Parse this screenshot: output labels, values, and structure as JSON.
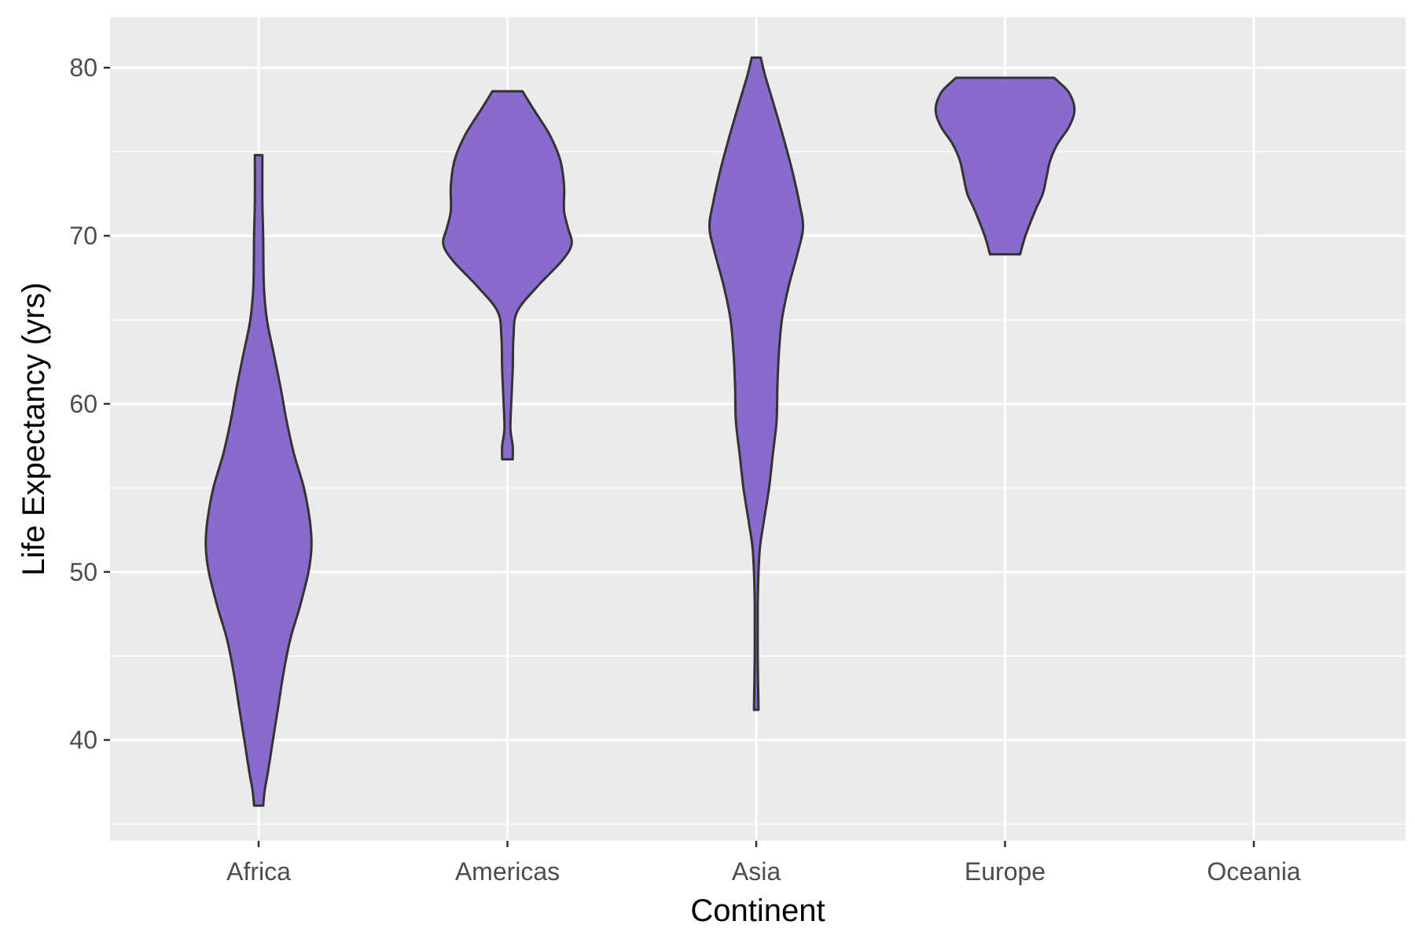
{
  "chart_data": {
    "type": "violin",
    "title": "",
    "xlabel": "Continent",
    "ylabel": "Life Expectancy (yrs)",
    "ylim": [
      34,
      83
    ],
    "yticks": [
      40,
      50,
      60,
      70,
      80
    ],
    "categories": [
      "Africa",
      "Americas",
      "Asia",
      "Europe",
      "Oceania"
    ],
    "grid": true,
    "legend": "none",
    "colors": {
      "panel_background": "#ebebeb",
      "grid_line": "#ffffff",
      "violin_fill": "#8a6acd",
      "violin_stroke": "#333333",
      "tick_label": "#4d4d4d",
      "tick_mark": "#333333"
    },
    "violins": [
      {
        "category": "Africa",
        "min": 36.1,
        "max": 74.8,
        "profile": [
          [
            36.1,
            0.06
          ],
          [
            37,
            0.08
          ],
          [
            38,
            0.12
          ],
          [
            40,
            0.19
          ],
          [
            42,
            0.26
          ],
          [
            44,
            0.33
          ],
          [
            46,
            0.42
          ],
          [
            48,
            0.55
          ],
          [
            50,
            0.66
          ],
          [
            51.5,
            0.7
          ],
          [
            53,
            0.68
          ],
          [
            55,
            0.6
          ],
          [
            57,
            0.47
          ],
          [
            59,
            0.37
          ],
          [
            61,
            0.29
          ],
          [
            63,
            0.2
          ],
          [
            65,
            0.11
          ],
          [
            67,
            0.07
          ],
          [
            70,
            0.06
          ],
          [
            72,
            0.05
          ],
          [
            74.8,
            0.05
          ]
        ]
      },
      {
        "category": "Americas",
        "min": 56.7,
        "max": 78.6,
        "profile": [
          [
            56.7,
            0.07
          ],
          [
            57.5,
            0.07
          ],
          [
            58.5,
            0.04
          ],
          [
            60,
            0.05
          ],
          [
            62,
            0.07
          ],
          [
            64,
            0.08
          ],
          [
            65.5,
            0.13
          ],
          [
            67,
            0.4
          ],
          [
            68.5,
            0.72
          ],
          [
            69.5,
            0.85
          ],
          [
            70.5,
            0.8
          ],
          [
            71.5,
            0.75
          ],
          [
            73,
            0.75
          ],
          [
            74.5,
            0.7
          ],
          [
            76,
            0.56
          ],
          [
            77.5,
            0.35
          ],
          [
            78.6,
            0.2
          ]
        ]
      },
      {
        "category": "Asia",
        "min": 41.8,
        "max": 80.6,
        "profile": [
          [
            41.8,
            0.03
          ],
          [
            45,
            0.02
          ],
          [
            48,
            0.02
          ],
          [
            50,
            0.03
          ],
          [
            51.5,
            0.05
          ],
          [
            53,
            0.1
          ],
          [
            55,
            0.17
          ],
          [
            57,
            0.22
          ],
          [
            59,
            0.27
          ],
          [
            61,
            0.28
          ],
          [
            63,
            0.3
          ],
          [
            65,
            0.34
          ],
          [
            67,
            0.43
          ],
          [
            69,
            0.55
          ],
          [
            70.5,
            0.62
          ],
          [
            72,
            0.57
          ],
          [
            74,
            0.47
          ],
          [
            76,
            0.35
          ],
          [
            78,
            0.22
          ],
          [
            79.5,
            0.12
          ],
          [
            80.6,
            0.06
          ]
        ]
      },
      {
        "category": "Europe",
        "min": 68.9,
        "max": 79.4,
        "profile": [
          [
            68.9,
            0.2
          ],
          [
            70,
            0.27
          ],
          [
            71.5,
            0.4
          ],
          [
            72.5,
            0.5
          ],
          [
            73.5,
            0.55
          ],
          [
            74.5,
            0.6
          ],
          [
            75.5,
            0.7
          ],
          [
            76.5,
            0.85
          ],
          [
            77.5,
            0.92
          ],
          [
            78.5,
            0.85
          ],
          [
            79.2,
            0.7
          ],
          [
            79.4,
            0.65
          ]
        ]
      },
      {
        "category": "Oceania",
        "min": null,
        "max": null,
        "profile": []
      }
    ]
  }
}
